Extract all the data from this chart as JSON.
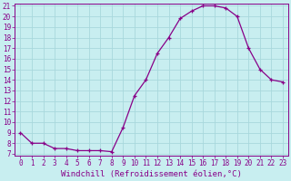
{
  "x": [
    0,
    1,
    2,
    3,
    4,
    5,
    6,
    7,
    8,
    9,
    10,
    11,
    12,
    13,
    14,
    15,
    16,
    17,
    18,
    19,
    20,
    21,
    22,
    23
  ],
  "y": [
    9.0,
    8.0,
    8.0,
    7.5,
    7.5,
    7.3,
    7.3,
    7.3,
    7.2,
    9.5,
    12.5,
    14.0,
    16.5,
    18.0,
    19.8,
    20.5,
    21.0,
    21.0,
    20.8,
    20.0,
    17.0,
    15.0,
    14.0,
    13.8
  ],
  "line_color": "#880088",
  "marker": "+",
  "bg_color": "#c8eef0",
  "grid_color": "#a8d8dc",
  "axis_color": "#880088",
  "tick_color": "#880088",
  "xlabel": "Windchill (Refroidissement éolien,°C)",
  "ylim": [
    7,
    21
  ],
  "xlim": [
    -0.5,
    23.5
  ],
  "yticks": [
    7,
    8,
    9,
    10,
    11,
    12,
    13,
    14,
    15,
    16,
    17,
    18,
    19,
    20,
    21
  ],
  "xticks": [
    0,
    1,
    2,
    3,
    4,
    5,
    6,
    7,
    8,
    9,
    10,
    11,
    12,
    13,
    14,
    15,
    16,
    17,
    18,
    19,
    20,
    21,
    22,
    23
  ],
  "tick_fontsize": 5.5,
  "xlabel_fontsize": 6.5,
  "linewidth": 0.9,
  "markersize": 3.5,
  "markeredgewidth": 0.9
}
